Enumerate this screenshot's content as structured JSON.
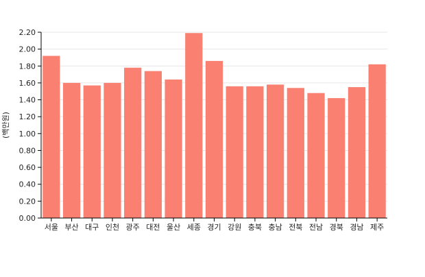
{
  "chart_data": {
    "type": "bar",
    "title": "",
    "xlabel": "",
    "ylabel": "(백만원)",
    "categories": [
      "서울",
      "부산",
      "대구",
      "인천",
      "광주",
      "대전",
      "울산",
      "세종",
      "경기",
      "강원",
      "충북",
      "충남",
      "전북",
      "전남",
      "경북",
      "경남",
      "제주"
    ],
    "values": [
      1.92,
      1.6,
      1.57,
      1.6,
      1.78,
      1.74,
      1.64,
      2.19,
      1.86,
      1.56,
      1.56,
      1.58,
      1.54,
      1.48,
      1.42,
      1.55,
      1.82
    ],
    "ylim": [
      0,
      2.2
    ],
    "yticks": [
      "0.00",
      "0.20",
      "0.40",
      "0.60",
      "0.80",
      "1.00",
      "1.20",
      "1.40",
      "1.60",
      "1.80",
      "2.00",
      "2.20"
    ],
    "grid": true,
    "legend": "none",
    "colors": {
      "bar": "#FA8072",
      "grid": "#E6E6E6",
      "axis": "#000000"
    }
  }
}
